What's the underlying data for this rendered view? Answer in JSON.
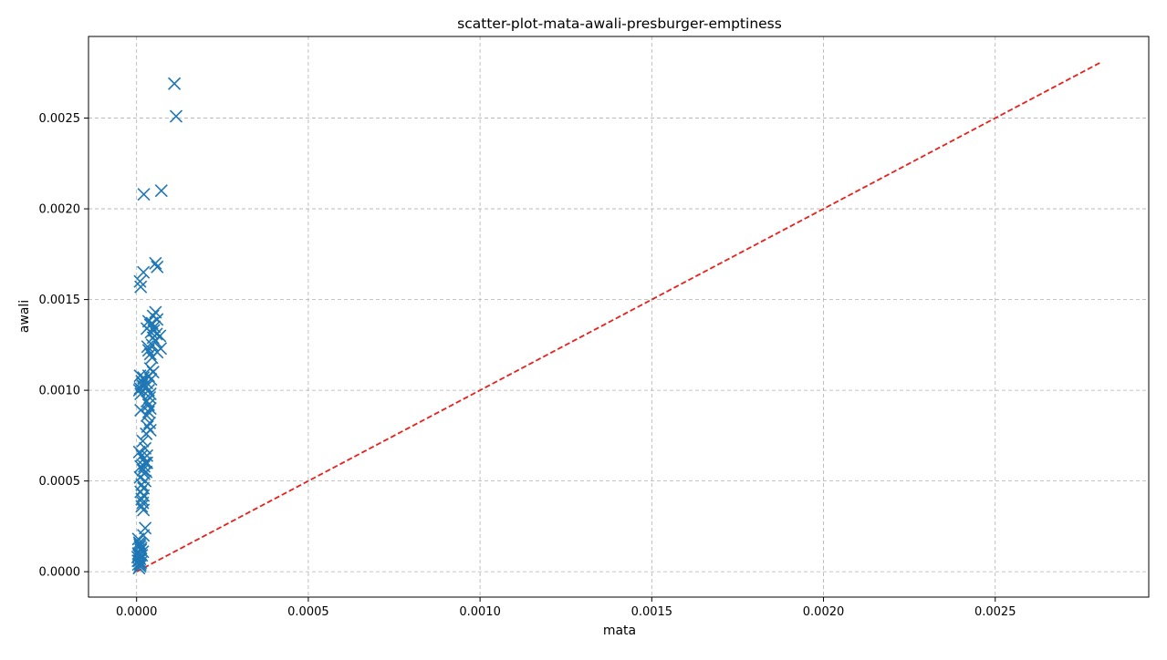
{
  "chart_data": {
    "type": "scatter",
    "title": "scatter-plot-mata-awali-presburger-emptiness",
    "xlabel": "mata",
    "ylabel": "awali",
    "xlim": [
      -0.00014,
      0.002947
    ],
    "ylim": [
      -0.00014,
      0.00295
    ],
    "xticks": [
      "0.0000",
      "0.0005",
      "0.0010",
      "0.0015",
      "0.0020",
      "0.0025"
    ],
    "yticks": [
      "0.0000",
      "0.0005",
      "0.0010",
      "0.0015",
      "0.0020",
      "0.0025"
    ],
    "grid": true,
    "marker": "x",
    "colors": {
      "points": "#1f77b4",
      "reference_line": "#e8201c",
      "grid": "#b0b0b0"
    },
    "reference_line": {
      "style": "dashed",
      "x": [
        0.0,
        0.00281
      ],
      "y": [
        0.0,
        0.00281
      ]
    },
    "series": [
      {
        "x": [
          0.00011,
          0.000115,
          7.2e-05,
          2.1e-05,
          5.5e-05,
          6e-05,
          1e-05,
          2e-05,
          1.2e-05,
          5.5e-05,
          4.8e-05,
          6e-05,
          4.5e-05,
          5.2e-05,
          5e-05,
          5.8e-05,
          4.8e-05,
          5.5e-05,
          4.5e-05,
          6.8e-05,
          7e-05,
          6e-05,
          3.5e-05,
          4e-05,
          3e-05,
          4.2e-05,
          3.5e-05,
          4e-05,
          3.2e-05,
          4.5e-05,
          4e-05,
          4.8e-05,
          3.5e-05,
          4.2e-05,
          1e-05,
          1.5e-05,
          2e-05,
          8e-06,
          1.2e-05,
          1.8e-05,
          1.5e-05,
          1e-05,
          2e-05,
          3e-05,
          2.8e-05,
          3.5e-05,
          4e-05,
          3.8e-05,
          3e-05,
          3.5e-05,
          4e-05,
          3.5e-05,
          3e-05,
          3.8e-05,
          3.2e-05,
          4e-05,
          2.8e-05,
          8e-06,
          1.5e-05,
          2e-05,
          2.5e-05,
          1.2e-05,
          1.8e-05,
          2.2e-05,
          1e-05,
          2.5e-05,
          3e-05,
          1.5e-05,
          2e-05,
          1.8e-05,
          2.5e-05,
          1.2e-05,
          3e-05,
          2e-05,
          1.5e-05,
          2.8e-05,
          2.2e-05,
          1.8e-05,
          1.5e-05,
          2e-05,
          1.2e-05,
          2.5e-05,
          2e-05,
          5e-06,
          8e-06,
          1e-05,
          1.2e-05,
          5e-06,
          1.5e-05,
          3e-06,
          1e-05,
          8e-06,
          1.2e-05,
          5e-06,
          1.8e-05,
          1e-05,
          7e-06,
          1.3e-05,
          4e-06,
          9e-06,
          6e-06,
          1.1e-05
        ],
        "y": [
          0.00269,
          0.00251,
          0.0021,
          0.00208,
          0.0017,
          0.00168,
          0.0016,
          0.00165,
          0.00157,
          0.00143,
          0.00141,
          0.00139,
          0.00137,
          0.00135,
          0.00133,
          0.00131,
          0.00129,
          0.00127,
          0.00125,
          0.0013,
          0.00123,
          0.00121,
          0.00138,
          0.00136,
          0.00134,
          0.00132,
          0.00122,
          0.0012,
          0.00124,
          0.00118,
          0.00112,
          0.0011,
          0.00108,
          0.00106,
          0.00108,
          0.00105,
          0.00102,
          0.001,
          0.00098,
          0.00104,
          0.00103,
          0.00101,
          0.00107,
          0.00104,
          0.00102,
          0.001,
          0.00098,
          0.00096,
          0.00094,
          0.00092,
          0.0009,
          0.00088,
          0.00086,
          0.00082,
          0.0008,
          0.00078,
          0.00076,
          0.00066,
          0.00064,
          0.00062,
          0.0006,
          0.00058,
          0.00056,
          0.00054,
          0.00052,
          0.0005,
          0.00064,
          0.00048,
          0.00046,
          0.00072,
          0.00068,
          0.00044,
          0.0006,
          0.00042,
          0.0004,
          0.00055,
          0.00058,
          0.00038,
          0.00036,
          0.00034,
          0.00089,
          0.00024,
          0.0002,
          0.00018,
          0.00016,
          0.00014,
          0.00012,
          0.0001,
          9e-05,
          8e-05,
          7e-05,
          6e-05,
          5e-05,
          4e-05,
          0.00011,
          3e-05,
          2e-05,
          0.00013,
          6e-05,
          0.00015,
          9e-05,
          4e-05
        ]
      }
    ]
  }
}
